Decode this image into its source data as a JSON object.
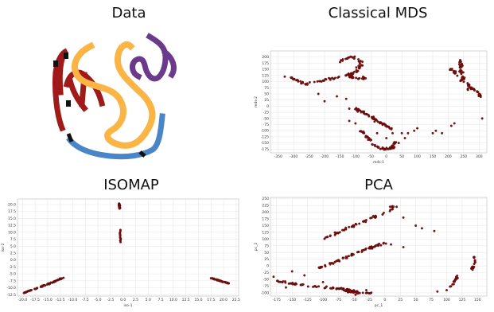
{
  "titles": {
    "data": "Data",
    "mds": "Classical MDS",
    "isomap": "ISOMAP",
    "pca": "PCA"
  },
  "colors": {
    "red": "#a01a1a",
    "orange": "#fbb545",
    "purple": "#6b3a8c",
    "blue": "#4a85c8",
    "point_fill": "#8b1010",
    "grid": "#e4e4e4"
  },
  "data_image": {
    "description_icon": "swiss-roll-strokes-image",
    "strokes": [
      {
        "name": "red-stroke",
        "color": "#a01a1a"
      },
      {
        "name": "orange-stroke",
        "color": "#fbb545"
      },
      {
        "name": "purple-stroke",
        "color": "#6b3a8c"
      },
      {
        "name": "blue-stroke",
        "color": "#4a85c8"
      }
    ]
  },
  "chart_data": [
    {
      "type": "scatter",
      "id": "mds",
      "title": "Classical MDS",
      "xlabel": "mds-1",
      "ylabel": "mds-2",
      "xlim": [
        -375,
        325
      ],
      "ylim": [
        -190,
        225
      ],
      "xticks": [
        -350,
        -300,
        -250,
        -200,
        -150,
        -100,
        -50,
        0,
        50,
        100,
        150,
        200,
        250,
        300
      ],
      "yticks": [
        -175,
        -150,
        -125,
        -100,
        -75,
        -50,
        -25,
        0,
        25,
        50,
        75,
        100,
        125,
        150,
        175,
        200
      ],
      "clusters": [
        {
          "kind": "curve",
          "pts": [
            [
              -340,
              130
            ],
            [
              -300,
              110
            ],
            [
              -260,
              90
            ],
            [
              -220,
              100
            ],
            [
              -180,
              110
            ],
            [
              -150,
              120
            ]
          ],
          "n": 40,
          "spread": 7
        },
        {
          "kind": "curve",
          "pts": [
            [
              -150,
              180
            ],
            [
              -130,
              195
            ],
            [
              -110,
              200
            ],
            [
              -90,
              190
            ],
            [
              -80,
              170
            ],
            [
              -100,
              140
            ],
            [
              -130,
              125
            ],
            [
              -90,
              110
            ],
            [
              -70,
              115
            ]
          ],
          "n": 70,
          "spread": 8
        },
        {
          "kind": "curve",
          "pts": [
            [
              -100,
              -10
            ],
            [
              -60,
              -35
            ],
            [
              -30,
              -60
            ],
            [
              0,
              -80
            ],
            [
              20,
              -95
            ]
          ],
          "n": 60,
          "spread": 6
        },
        {
          "kind": "curve",
          "pts": [
            [
              -80,
              -100
            ],
            [
              -60,
              -130
            ],
            [
              -40,
              -160
            ],
            [
              -10,
              -175
            ],
            [
              20,
              -170
            ],
            [
              30,
              -140
            ]
          ],
          "n": 55,
          "spread": 6
        },
        {
          "kind": "curve",
          "pts": [
            [
              240,
              190
            ],
            [
              240,
              150
            ],
            [
              250,
              110
            ],
            [
              270,
              80
            ],
            [
              290,
              60
            ],
            [
              305,
              40
            ]
          ],
          "n": 60,
          "spread": 5
        },
        {
          "kind": "curve",
          "pts": [
            [
              200,
              160
            ],
            [
              220,
              140
            ],
            [
              235,
              110
            ],
            [
              250,
              90
            ],
            [
              275,
              55
            ]
          ],
          "n": 25,
          "spread": 5
        },
        {
          "kind": "scatter",
          "pts": [
            [
              -220,
              50
            ],
            [
              -160,
              40
            ],
            [
              -120,
              -10
            ],
            [
              -200,
              20
            ],
            [
              -130,
              30
            ],
            [
              50,
              -110
            ],
            [
              70,
              -110
            ],
            [
              90,
              -100
            ],
            [
              100,
              -90
            ],
            [
              150,
              -110
            ],
            [
              160,
              -100
            ],
            [
              180,
              -110
            ],
            [
              210,
              -80
            ],
            [
              220,
              -70
            ],
            [
              310,
              -50
            ],
            [
              -100,
              -70
            ],
            [
              -120,
              -60
            ],
            [
              40,
              -150
            ],
            [
              60,
              -130
            ],
            [
              0,
              -130
            ],
            [
              20,
              -110
            ],
            [
              -30,
              -110
            ]
          ],
          "n": 0,
          "spread": 0
        }
      ]
    },
    {
      "type": "scatter",
      "id": "isomap",
      "title": "ISOMAP",
      "xlabel": "iso-1",
      "ylabel": "iso-2",
      "xlim": [
        -21,
        23
      ],
      "ylim": [
        -13,
        22
      ],
      "xticks": [
        -20.0,
        -17.5,
        -15.0,
        -12.5,
        -10.0,
        -7.5,
        -5.0,
        -2.5,
        0.0,
        2.5,
        5.0,
        7.5,
        10.0,
        12.5,
        15.0,
        17.5,
        20.0,
        22.5
      ],
      "yticks": [
        -12.5,
        -10.0,
        -7.5,
        -5.0,
        -2.5,
        0.0,
        2.5,
        5.0,
        7.5,
        10.0,
        12.5,
        15.0,
        17.5,
        20.0
      ],
      "clusters": [
        {
          "kind": "curve",
          "pts": [
            [
              -20,
              -12
            ],
            [
              -17,
              -10
            ],
            [
              -14,
              -8
            ],
            [
              -12,
              -6.5
            ]
          ],
          "n": 60,
          "spread": 0.25
        },
        {
          "kind": "curve",
          "pts": [
            [
              -0.8,
              20.5
            ],
            [
              -0.7,
              18.5
            ]
          ],
          "n": 25,
          "spread": 0.15
        },
        {
          "kind": "curve",
          "pts": [
            [
              -0.6,
              11.2
            ],
            [
              -0.5,
              6.5
            ]
          ],
          "n": 15,
          "spread": 0.12
        },
        {
          "kind": "curve",
          "pts": [
            [
              17.5,
              -6.5
            ],
            [
              19.5,
              -7.6
            ],
            [
              21,
              -8.4
            ]
          ],
          "n": 40,
          "spread": 0.2
        }
      ]
    },
    {
      "type": "scatter",
      "id": "pca",
      "title": "PCA",
      "xlabel": "pc_1",
      "ylabel": "pc_2",
      "xlim": [
        -185,
        165
      ],
      "ylim": [
        -112,
        255
      ],
      "xticks": [
        -175,
        -150,
        -125,
        -100,
        -75,
        -50,
        -25,
        0,
        25,
        50,
        75,
        100,
        125,
        150
      ],
      "yticks": [
        -100,
        -75,
        -50,
        -25,
        0,
        25,
        50,
        75,
        100,
        125,
        150,
        175,
        200,
        225,
        250
      ],
      "clusters": [
        {
          "kind": "curve",
          "pts": [
            [
              -100,
              100
            ],
            [
              -70,
              130
            ],
            [
              -40,
              160
            ],
            [
              -10,
              190
            ],
            [
              10,
              205
            ],
            [
              20,
              225
            ],
            [
              0,
              220
            ]
          ],
          "n": 55,
          "spread": 5
        },
        {
          "kind": "curve",
          "pts": [
            [
              -110,
              -10
            ],
            [
              -80,
              15
            ],
            [
              -50,
              45
            ],
            [
              -20,
              70
            ],
            [
              0,
              85
            ]
          ],
          "n": 70,
          "spread": 5
        },
        {
          "kind": "curve",
          "pts": [
            [
              -175,
              -55
            ],
            [
              -150,
              -65
            ],
            [
              -120,
              -75
            ],
            [
              -90,
              -80
            ],
            [
              -60,
              -88
            ],
            [
              -45,
              -95
            ],
            [
              -50,
              -105
            ]
          ],
          "n": 60,
          "spread": 5
        },
        {
          "kind": "curve",
          "pts": [
            [
              -75,
              -80
            ],
            [
              -60,
              -95
            ],
            [
              -40,
              -102
            ],
            [
              -20,
              -100
            ]
          ],
          "n": 30,
          "spread": 4
        },
        {
          "kind": "curve",
          "pts": [
            [
              145,
              35
            ],
            [
              145,
              10
            ],
            [
              140,
              -15
            ]
          ],
          "n": 20,
          "spread": 3
        },
        {
          "kind": "curve",
          "pts": [
            [
              118,
              -35
            ],
            [
              112,
              -60
            ],
            [
              106,
              -80
            ]
          ],
          "n": 18,
          "spread": 3
        },
        {
          "kind": "scatter",
          "pts": [
            [
              30,
              180
            ],
            [
              50,
              150
            ],
            [
              60,
              140
            ],
            [
              80,
              130
            ],
            [
              -150,
              -20
            ],
            [
              -130,
              -35
            ],
            [
              10,
              80
            ],
            [
              30,
              70
            ],
            [
              -160,
              -80
            ],
            [
              -180,
              -40
            ],
            [
              85,
              -95
            ],
            [
              100,
              -90
            ],
            [
              -30,
              -90
            ],
            [
              -100,
              -60
            ]
          ],
          "n": 0,
          "spread": 0
        }
      ]
    }
  ]
}
